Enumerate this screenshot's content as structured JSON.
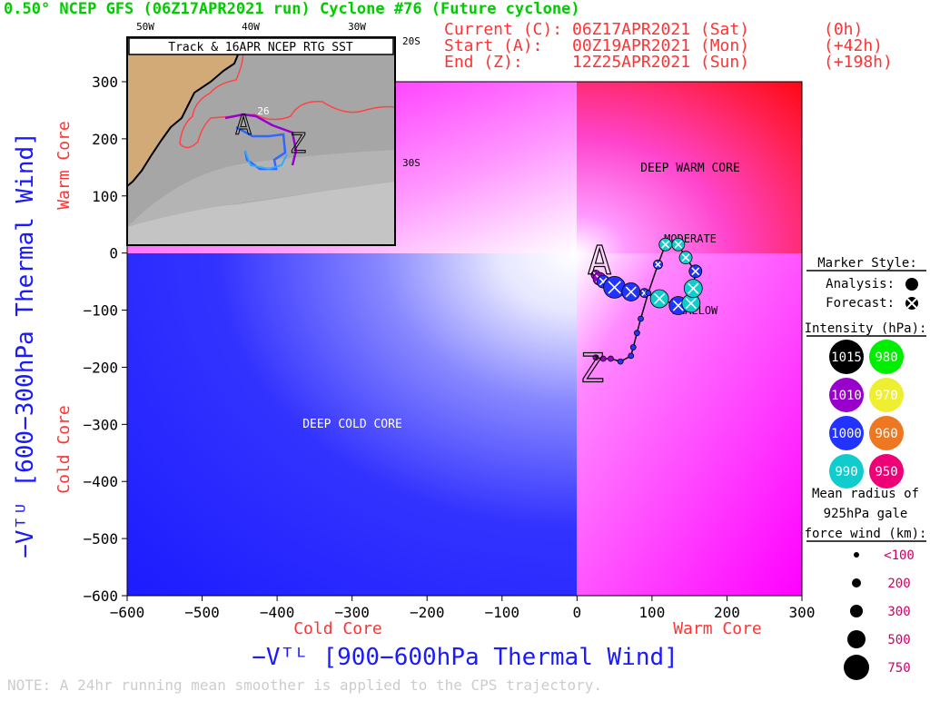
{
  "header": {
    "title": "0.50° NCEP GFS (06Z17APR2021 run) Cyclone #76 (Future cyclone)",
    "current_label": "Current (C):",
    "current_date": "06Z17APR2021 (Sat)",
    "current_hour": "(0h)",
    "start_label": "Start (A):",
    "start_date": "00Z19APR2021 (Mon)",
    "start_hour": "(+42h)",
    "end_label": "End (Z):",
    "end_date": "12Z25APR2021 (Sun)",
    "end_hour": "(+198h)"
  },
  "axes": {
    "xlabel": "−Vᵀᴸ [900−600hPa Thermal Wind]",
    "ylabel": "−Vᵀᵁ [600−300hPa Thermal Wind]",
    "x_left_note": "Cold Core",
    "x_right_note": "Warm Core",
    "y_top_note": "Warm Core",
    "y_bottom_note": "Cold Core",
    "xlim": [
      -600,
      300
    ],
    "ylim": [
      -600,
      300
    ],
    "xticks": [
      "−600",
      "−500",
      "−400",
      "−300",
      "−200",
      "−100",
      "0",
      "100",
      "200",
      "300"
    ],
    "yticks": [
      "300",
      "200",
      "100",
      "0",
      "−100",
      "−200",
      "−300",
      "−400",
      "−500",
      "−600"
    ]
  },
  "regions": {
    "deep_warm_core": "DEEP WARM CORE",
    "deep_cold_core": "DEEP COLD CORE",
    "moderate": "MODERATE",
    "shallow": "SHALLOW"
  },
  "colors": {
    "cold": "#1a1aff",
    "warm": "#ff0000",
    "hybrid": "#ff00ff",
    "accent_red": "#ff3333",
    "accent_blue": "#1a1aff",
    "title_green": "#00cc00"
  },
  "inset": {
    "title": "Track & 16APR NCEP RTG SST",
    "lon_labels": [
      "50W",
      "40W",
      "30W"
    ],
    "lat_labels": [
      "20S",
      "30S"
    ],
    "sst_label": "26",
    "start_marker": "A",
    "end_marker": "Z"
  },
  "legend": {
    "marker_style_title": "Marker Style:",
    "analysis_label": "Analysis:",
    "forecast_label": "Forecast:",
    "intensity_title": "Intensity (hPa):",
    "intensity": [
      {
        "label": "1015",
        "color": "#000000"
      },
      {
        "label": "980",
        "color": "#00ee00"
      },
      {
        "label": "1010",
        "color": "#9900cc"
      },
      {
        "label": "970",
        "color": "#eeee33"
      },
      {
        "label": "1000",
        "color": "#2233ff"
      },
      {
        "label": "960",
        "color": "#ee7722"
      },
      {
        "label": "990",
        "color": "#11cccc"
      },
      {
        "label": "950",
        "color": "#ee0077"
      }
    ],
    "radius_title": [
      "Mean radius of",
      "925hPa gale",
      "force wind (km):"
    ],
    "radius_items": [
      "<100",
      "200",
      "300",
      "500",
      "750"
    ]
  },
  "note": "NOTE:  A 24hr running mean smoother is applied to the CPS trajectory.",
  "chart_data": {
    "type": "scatter",
    "title": "0.50° NCEP GFS (06Z17APR2021 run) Cyclone #76 (Future cyclone)",
    "xlabel": "−Vᵀᴸ [900−600hPa Thermal Wind]",
    "ylabel": "−Vᵀᵁ [600−300hPa Thermal Wind]",
    "xlim": [
      -600,
      300
    ],
    "ylim": [
      -600,
      300
    ],
    "grid": false,
    "legend_position": "right",
    "series": [
      {
        "name": "CPS trajectory",
        "points": [
          {
            "x": 25,
            "y": -38,
            "size": 200,
            "color": "#9900cc",
            "style": "forecast"
          },
          {
            "x": 30,
            "y": -45,
            "size": 300,
            "color": "#9900cc",
            "style": "forecast"
          },
          {
            "x": 35,
            "y": -50,
            "size": 300,
            "color": "#2233ff",
            "style": "forecast"
          },
          {
            "x": 50,
            "y": -60,
            "size": 750,
            "color": "#2233ff",
            "style": "forecast"
          },
          {
            "x": 72,
            "y": -68,
            "size": 500,
            "color": "#2233ff",
            "style": "forecast"
          },
          {
            "x": 90,
            "y": -70,
            "size": 200,
            "color": "#2233ff",
            "style": "forecast"
          },
          {
            "x": 110,
            "y": -80,
            "size": 500,
            "color": "#11cccc",
            "style": "forecast"
          },
          {
            "x": 135,
            "y": -92,
            "size": 500,
            "color": "#2233ff",
            "style": "forecast"
          },
          {
            "x": 152,
            "y": -88,
            "size": 500,
            "color": "#11cccc",
            "style": "forecast"
          },
          {
            "x": 155,
            "y": -62,
            "size": 500,
            "color": "#11cccc",
            "style": "forecast"
          },
          {
            "x": 158,
            "y": -32,
            "size": 300,
            "color": "#2233ff",
            "style": "forecast"
          },
          {
            "x": 145,
            "y": -8,
            "size": 300,
            "color": "#11cccc",
            "style": "forecast"
          },
          {
            "x": 135,
            "y": 15,
            "size": 300,
            "color": "#11cccc",
            "style": "forecast"
          },
          {
            "x": 118,
            "y": 15,
            "size": 300,
            "color": "#11cccc",
            "style": "forecast"
          },
          {
            "x": 108,
            "y": -20,
            "size": 200,
            "color": "#2233ff",
            "style": "forecast"
          },
          {
            "x": 95,
            "y": -70,
            "size": 100,
            "color": "#2233ff",
            "style": "forecast"
          },
          {
            "x": 85,
            "y": -115,
            "size": 100,
            "color": "#2233ff",
            "style": "forecast"
          },
          {
            "x": 80,
            "y": -140,
            "size": 100,
            "color": "#2233ff",
            "style": "forecast"
          },
          {
            "x": 75,
            "y": -165,
            "size": 100,
            "color": "#2233ff",
            "style": "forecast"
          },
          {
            "x": 72,
            "y": -180,
            "size": 100,
            "color": "#2233ff",
            "style": "forecast"
          },
          {
            "x": 58,
            "y": -190,
            "size": 100,
            "color": "#2233ff",
            "style": "forecast"
          },
          {
            "x": 45,
            "y": -185,
            "size": 100,
            "color": "#9900cc",
            "style": "forecast"
          },
          {
            "x": 35,
            "y": -185,
            "size": 100,
            "color": "#9900cc",
            "style": "forecast"
          },
          {
            "x": 25,
            "y": -183,
            "size": 100,
            "color": "#9900cc",
            "style": "forecast"
          }
        ]
      }
    ],
    "start_point": {
      "label": "A",
      "x": 30,
      "y": -40
    },
    "end_point": {
      "label": "Z",
      "x": 20,
      "y": -200
    }
  }
}
